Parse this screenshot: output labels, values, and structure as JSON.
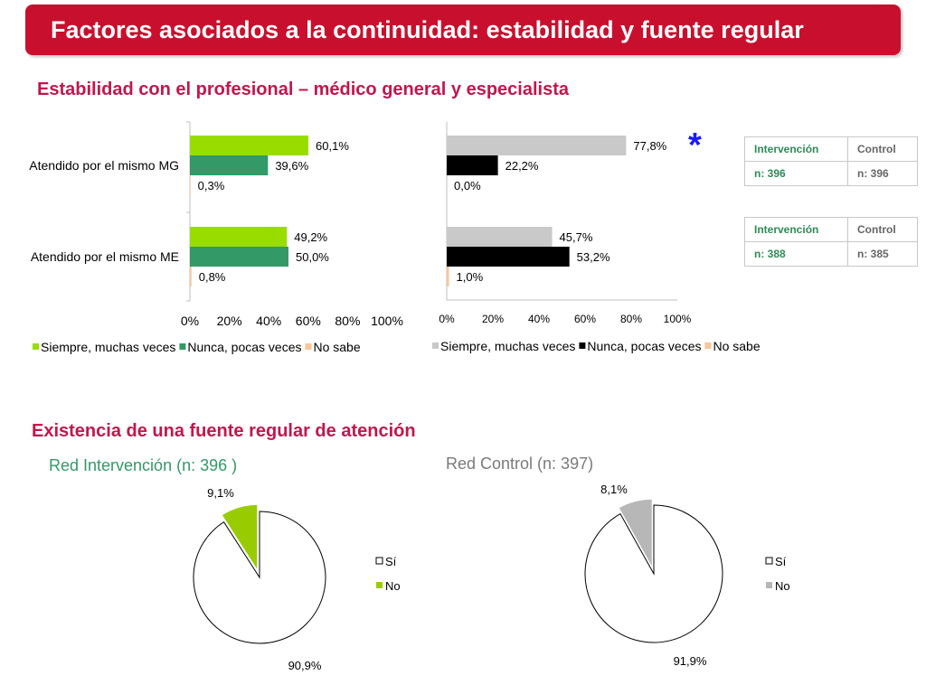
{
  "header": {
    "title": "Factores asociados a la continuidad: estabilidad y fuente regular"
  },
  "section1": {
    "title": "Estabilidad con el profesional – médico general y especialista",
    "significance_marker": "*"
  },
  "section2": {
    "title": "Existencia de una fuente regular de atención",
    "pie_intervention_title": "Red Intervención (n: 396 )",
    "pie_control_title": "Red Control  (n: 397)"
  },
  "tables": [
    {
      "headers": [
        "Intervención",
        "Control"
      ],
      "values": [
        "n: 396",
        "n: 396"
      ]
    },
    {
      "headers": [
        "Intervención",
        "Control"
      ],
      "values": [
        "n: 388",
        "n: 385"
      ]
    }
  ],
  "colors": {
    "int_siempre": "#99dd00",
    "int_nunca": "#339966",
    "nosabe": "#f9c597",
    "ctl_siempre": "#c9c9c9",
    "ctl_nunca": "#000000",
    "pie_int_no": "#99cc00",
    "pie_ctl_no": "#b7b7b7",
    "title_red": "#c8102e"
  },
  "chart_data": [
    {
      "type": "bar",
      "orientation": "horizontal",
      "categories": [
        "Atendido por el mismo MG",
        "Atendido por el mismo ME"
      ],
      "series": [
        {
          "name": "Siempre, muchas veces",
          "values": [
            60.1,
            49.2
          ],
          "labels": [
            "60,1%",
            "49,2%"
          ]
        },
        {
          "name": "Nunca, pocas veces",
          "values": [
            39.6,
            50.0
          ],
          "labels": [
            "39,6%",
            "50,0%"
          ]
        },
        {
          "name": "No sabe",
          "values": [
            0.3,
            0.8
          ],
          "labels": [
            "0,3%",
            "0,8%"
          ]
        }
      ],
      "xticks": [
        "0%",
        "20%",
        "40%",
        "60%",
        "80%",
        "100%"
      ],
      "xlim": [
        0,
        100
      ],
      "legend": "bottom"
    },
    {
      "type": "bar",
      "orientation": "horizontal",
      "categories": [
        "Atendido por el mismo MG",
        "Atendido por el mismo ME"
      ],
      "series": [
        {
          "name": "Siempre, muchas veces",
          "values": [
            77.8,
            45.7
          ],
          "labels": [
            "77,8%",
            "45,7%"
          ]
        },
        {
          "name": "Nunca, pocas veces",
          "values": [
            22.2,
            53.2
          ],
          "labels": [
            "22,2%",
            "53,2%"
          ]
        },
        {
          "name": "No sabe",
          "values": [
            0.0,
            1.0
          ],
          "labels": [
            "0,0%",
            "1,0%"
          ]
        }
      ],
      "xticks": [
        "0%",
        "20%",
        "40%",
        "60%",
        "80%",
        "100%"
      ],
      "xlim": [
        0,
        100
      ],
      "legend": "bottom"
    },
    {
      "type": "pie",
      "slices": [
        {
          "name": "Sí",
          "value": 90.9,
          "label": "90,9%"
        },
        {
          "name": "No",
          "value": 9.1,
          "label": "9,1%"
        }
      ],
      "legend": "right"
    },
    {
      "type": "pie",
      "slices": [
        {
          "name": "Sí",
          "value": 91.9,
          "label": "91,9%"
        },
        {
          "name": "No",
          "value": 8.1,
          "label": "8,1%"
        }
      ],
      "legend": "right"
    }
  ]
}
